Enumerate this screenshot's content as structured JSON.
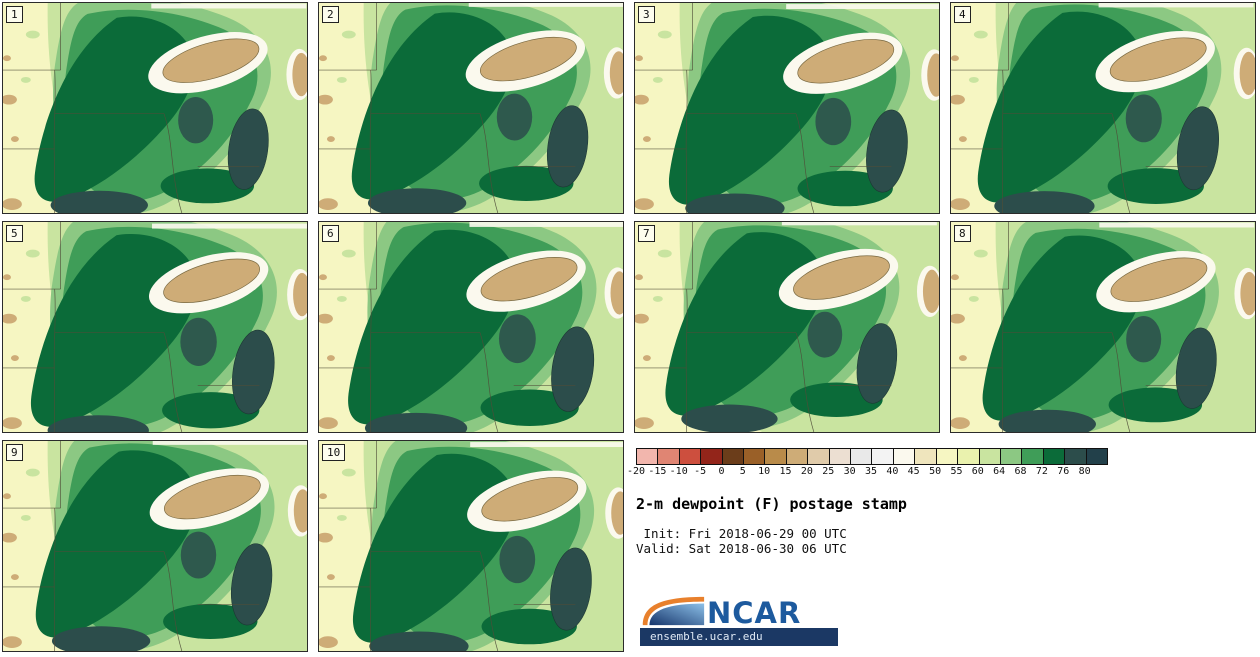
{
  "panels": [
    {
      "label": "1"
    },
    {
      "label": "2"
    },
    {
      "label": "3"
    },
    {
      "label": "4"
    },
    {
      "label": "5"
    },
    {
      "label": "6"
    },
    {
      "label": "7"
    },
    {
      "label": "8"
    },
    {
      "label": "9"
    },
    {
      "label": "10"
    }
  ],
  "legend": {
    "ticks": [
      "-20",
      "-15",
      "-10",
      "-5",
      "0",
      "5",
      "10",
      "15",
      "20",
      "25",
      "30",
      "35",
      "40",
      "45",
      "50",
      "55",
      "60",
      "64",
      "68",
      "72",
      "76",
      "80"
    ],
    "colors": [
      "#f2b6ad",
      "#e08573",
      "#cd4f3e",
      "#93251a",
      "#6b3d1a",
      "#9a6028",
      "#b98b4a",
      "#ceac77",
      "#e0cbaa",
      "#ecdfd2",
      "#e9e9e9",
      "#f3f3f3",
      "#fbf9ee",
      "#efe5bd",
      "#f6f6c2",
      "#eaf2ae",
      "#c9e4a0",
      "#8cc883",
      "#3f9d58",
      "#0b6b39",
      "#2c4d4b",
      "#22404a"
    ],
    "title": "2-m dewpoint (F) postage stamp",
    "init_line": " Init: Fri 2018-06-29 00 UTC",
    "valid_line": "Valid: Sat 2018-06-30 06 UTC",
    "logo_text": "NCAR",
    "site_text": "ensemble.ucar.edu"
  },
  "chart_data": {
    "type": "heatmap",
    "title": "2-m dewpoint (F) postage stamp",
    "variable": "2-m dewpoint",
    "units": "F",
    "init": "Fri 2018-06-29 00 UTC",
    "valid": "Sat 2018-06-30 06 UTC",
    "ensemble_members": [
      "1",
      "2",
      "3",
      "4",
      "5",
      "6",
      "7",
      "8",
      "9",
      "10"
    ],
    "layout": "10 postage-stamp map panels in a 4x3 grid; legend block in bottom-right 2 cells",
    "colorbar_ticks": [
      -20,
      -15,
      -10,
      -5,
      0,
      5,
      10,
      15,
      20,
      25,
      30,
      35,
      40,
      45,
      50,
      55,
      60,
      64,
      68,
      72,
      76,
      80
    ],
    "colorbar_colors": [
      "#f2b6ad",
      "#e08573",
      "#cd4f3e",
      "#93251a",
      "#6b3d1a",
      "#9a6028",
      "#b98b4a",
      "#ceac77",
      "#e0cbaa",
      "#ecdfd2",
      "#e9e9e9",
      "#f3f3f3",
      "#fbf9ee",
      "#efe5bd",
      "#f6f6c2",
      "#eaf2ae",
      "#c9e4a0",
      "#8cc883",
      "#3f9d58",
      "#0b6b39",
      "#2c4d4b",
      "#22404a"
    ],
    "legend_position": "bottom-right",
    "region_summary": "Upper Midwest / Great Lakes domain. Western plains ~50-55F (pale yellow) with drier tan specks at far west edge; broad 60-76F greens over MN/IA/WI/IL with 72-80F dark green/slate cores near Lake Michigan and southern areas; 10-45F tan/cream over Lake Superior in all members."
  }
}
